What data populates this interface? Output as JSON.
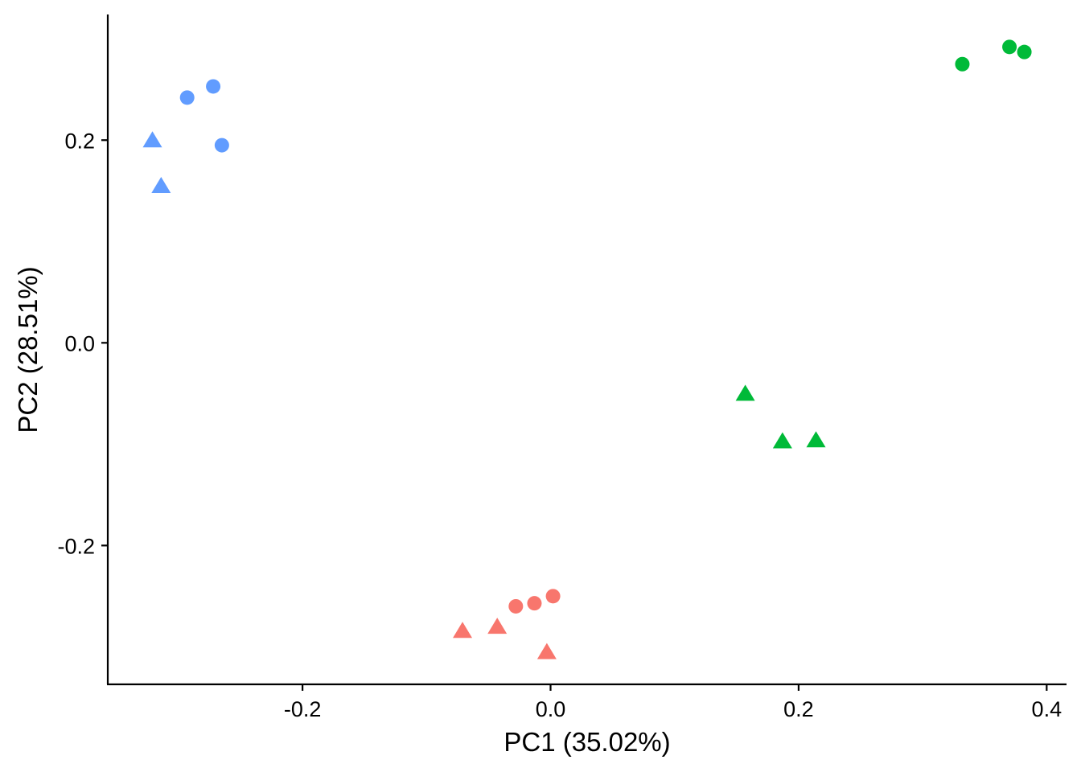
{
  "chart_data": {
    "type": "scatter",
    "xlabel": "PC1 (35.02%)",
    "ylabel": "PC2 (28.51%)",
    "xlim": [
      -0.357,
      0.416
    ],
    "ylim": [
      -0.337,
      0.324
    ],
    "xticks": [
      -0.2,
      0.0,
      0.2,
      0.4
    ],
    "xtick_labels": [
      "-0.2",
      "0.0",
      "0.2",
      "0.4"
    ],
    "yticks": [
      -0.2,
      0.0,
      0.2
    ],
    "ytick_labels": [
      "-0.2",
      "0.0",
      "0.2"
    ],
    "grid": false,
    "legend": "none",
    "series": [
      {
        "color": "#F8766D",
        "points": [
          {
            "x": -0.028,
            "y": -0.26,
            "shape": "circle"
          },
          {
            "x": -0.013,
            "y": -0.257,
            "shape": "circle"
          },
          {
            "x": 0.002,
            "y": -0.25,
            "shape": "circle"
          },
          {
            "x": -0.071,
            "y": -0.284,
            "shape": "triangle"
          },
          {
            "x": -0.043,
            "y": -0.28,
            "shape": "triangle"
          },
          {
            "x": -0.003,
            "y": -0.305,
            "shape": "triangle"
          }
        ]
      },
      {
        "color": "#00BA38",
        "points": [
          {
            "x": 0.332,
            "y": 0.275,
            "shape": "circle"
          },
          {
            "x": 0.37,
            "y": 0.292,
            "shape": "circle"
          },
          {
            "x": 0.382,
            "y": 0.287,
            "shape": "circle"
          },
          {
            "x": 0.157,
            "y": -0.05,
            "shape": "triangle"
          },
          {
            "x": 0.187,
            "y": -0.097,
            "shape": "triangle"
          },
          {
            "x": 0.214,
            "y": -0.096,
            "shape": "triangle"
          }
        ]
      },
      {
        "color": "#619CFF",
        "points": [
          {
            "x": -0.293,
            "y": 0.242,
            "shape": "circle"
          },
          {
            "x": -0.272,
            "y": 0.253,
            "shape": "circle"
          },
          {
            "x": -0.265,
            "y": 0.195,
            "shape": "circle"
          },
          {
            "x": -0.321,
            "y": 0.2,
            "shape": "triangle"
          },
          {
            "x": -0.314,
            "y": 0.155,
            "shape": "triangle"
          }
        ]
      }
    ]
  }
}
